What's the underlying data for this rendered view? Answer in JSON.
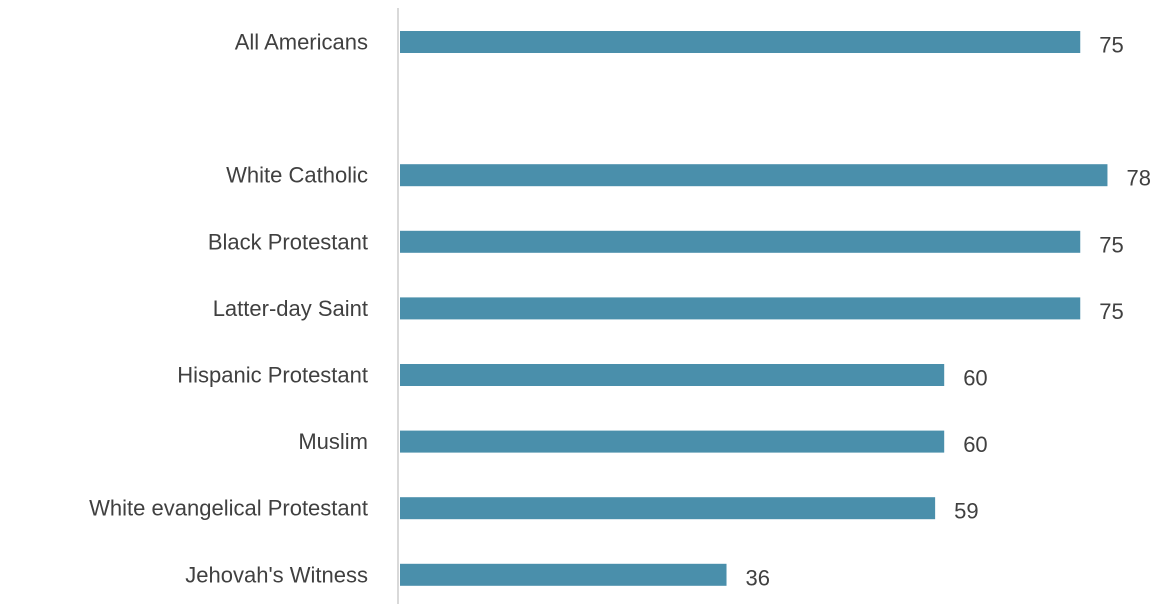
{
  "chart_data": {
    "type": "bar",
    "orientation": "horizontal",
    "categories": [
      "All Americans",
      "",
      "White Catholic",
      "Black Protestant",
      "Latter-day Saint",
      "Hispanic Protestant",
      "Muslim",
      "White evangelical Protestant",
      "Jehovah's Witness"
    ],
    "values": [
      75,
      null,
      78,
      75,
      75,
      60,
      60,
      59,
      36
    ],
    "data_labels": [
      "75",
      "",
      "78",
      "75",
      "75",
      "60",
      "60",
      "59",
      "36"
    ],
    "title": "",
    "xlabel": "",
    "ylabel": "",
    "xlim": [
      0,
      78
    ],
    "grid": false,
    "legend": "none",
    "colors": {
      "bar": "#4a8fab",
      "axis": "#d9d9d9",
      "text": "#404040"
    }
  }
}
